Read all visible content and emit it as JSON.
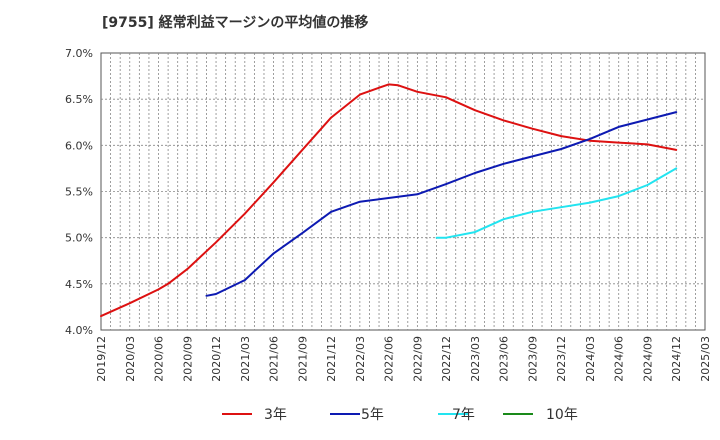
{
  "chart_data": {
    "type": "line",
    "title": "[9755]  経常利益マージンの平均値の推移",
    "xlabel": "",
    "ylabel": "",
    "ylim": [
      4.0,
      7.0
    ],
    "y_ticks": [
      "4.0%",
      "4.5%",
      "5.0%",
      "5.5%",
      "6.0%",
      "6.5%",
      "7.0%"
    ],
    "x_ticks": [
      "2019/12",
      "2020/03",
      "2020/06",
      "2020/09",
      "2020/12",
      "2021/03",
      "2021/06",
      "2021/09",
      "2021/12",
      "2022/03",
      "2022/06",
      "2022/09",
      "2022/12",
      "2023/03",
      "2023/06",
      "2023/09",
      "2023/12",
      "2024/03",
      "2024/06",
      "2024/09",
      "2024/12",
      "2025/03"
    ],
    "grid": true,
    "legend_position": "bottom",
    "series": [
      {
        "name": "3年",
        "color": "#dd1111",
        "points": [
          [
            "2019/12",
            4.15
          ],
          [
            "2020/03",
            4.29
          ],
          [
            "2020/06",
            4.44
          ],
          [
            "2020/07",
            4.5
          ],
          [
            "2020/09",
            4.66
          ],
          [
            "2020/12",
            4.95
          ],
          [
            "2021/03",
            5.26
          ],
          [
            "2021/06",
            5.6
          ],
          [
            "2021/09",
            5.95
          ],
          [
            "2021/12",
            6.3
          ],
          [
            "2022/03",
            6.55
          ],
          [
            "2022/06",
            6.66
          ],
          [
            "2022/07",
            6.65
          ],
          [
            "2022/09",
            6.58
          ],
          [
            "2022/12",
            6.52
          ],
          [
            "2023/03",
            6.38
          ],
          [
            "2023/06",
            6.27
          ],
          [
            "2023/09",
            6.18
          ],
          [
            "2023/12",
            6.1
          ],
          [
            "2024/03",
            6.05
          ],
          [
            "2024/06",
            6.03
          ],
          [
            "2024/09",
            6.01
          ],
          [
            "2024/12",
            5.95
          ]
        ]
      },
      {
        "name": "5年",
        "color": "#0d1ab2",
        "points": [
          [
            "2020/11",
            4.37
          ],
          [
            "2020/12",
            4.39
          ],
          [
            "2021/03",
            4.54
          ],
          [
            "2021/06",
            4.83
          ],
          [
            "2021/09",
            5.05
          ],
          [
            "2021/12",
            5.28
          ],
          [
            "2022/03",
            5.39
          ],
          [
            "2022/06",
            5.43
          ],
          [
            "2022/09",
            5.47
          ],
          [
            "2022/12",
            5.58
          ],
          [
            "2023/03",
            5.7
          ],
          [
            "2023/06",
            5.8
          ],
          [
            "2023/09",
            5.88
          ],
          [
            "2023/12",
            5.96
          ],
          [
            "2024/03",
            6.07
          ],
          [
            "2024/06",
            6.2
          ],
          [
            "2024/09",
            6.28
          ],
          [
            "2024/12",
            6.36
          ]
        ]
      },
      {
        "name": "7年",
        "color": "#22e4f0",
        "points": [
          [
            "2022/11",
            5.0
          ],
          [
            "2022/12",
            5.0
          ],
          [
            "2023/03",
            5.06
          ],
          [
            "2023/06",
            5.2
          ],
          [
            "2023/09",
            5.28
          ],
          [
            "2023/12",
            5.33
          ],
          [
            "2024/03",
            5.38
          ],
          [
            "2024/06",
            5.45
          ],
          [
            "2024/09",
            5.57
          ],
          [
            "2024/12",
            5.75
          ]
        ]
      },
      {
        "name": "10年",
        "color": "#1a8a1a",
        "points": []
      }
    ]
  }
}
